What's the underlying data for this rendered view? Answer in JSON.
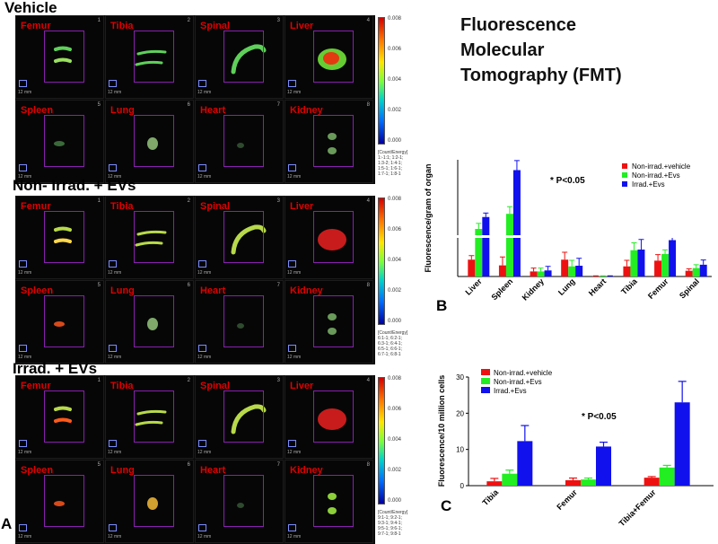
{
  "panel_a": {
    "letter": "A",
    "groups": [
      {
        "title": "Vehicle",
        "cells": [
          "Femur",
          "Tibia",
          "Spinal",
          "Liver",
          "Spleen",
          "Lung",
          "Heart",
          "Kidney"
        ],
        "ticks": [
          "0.008",
          "0.006",
          "0.004",
          "0.002",
          "0.000"
        ],
        "note": "[Count/Energy]\n1:-1:1; 1:2-1;\n1:3-2; 1:4-1;\n1:5-1; 1:6-1;\n1:7-1; 1:8-1"
      },
      {
        "title": "Non- Irrad. + EVs",
        "cells": [
          "Femur",
          "Tibia",
          "Spinal",
          "Liver",
          "Spleen",
          "Lung",
          "Heart",
          "Kidney"
        ],
        "ticks": [
          "0.008",
          "0.006",
          "0.004",
          "0.002",
          "0.000"
        ],
        "note": "[Count/Energy]\n6:1-1; 6:2-1;\n6:3-1; 6:4-1;\n6:5-1; 6:6-1;\n6:7-1; 6:8-1"
      },
      {
        "title": "Irrad. + EVs",
        "cells": [
          "Femur",
          "Tibia",
          "Spinal",
          "Liver",
          "Spleen",
          "Lung",
          "Heart",
          "Kidney"
        ],
        "ticks": [
          "0.008",
          "0.006",
          "0.004",
          "0.002",
          "0.000"
        ],
        "note": "[Count/Energy]\n9:1-1; 9:2-1;\n9:3-1; 9:4-1;\n9:5-1; 9:6-1;\n9:7-1; 9:8-1"
      }
    ],
    "cell_numbers": [
      "1",
      "2",
      "3",
      "4",
      "5",
      "6",
      "7",
      "8"
    ],
    "scale_label": "12 mm"
  },
  "fmt_title_lines": [
    "Fluorescence",
    "Molecular",
    "Tomography (FMT)"
  ],
  "colors": {
    "non_irrad_vehicle": "#ee1111",
    "non_irrad_evs": "#22ee22",
    "irrad_evs": "#1111ee"
  },
  "chart_data": [
    {
      "type": "bar",
      "panel_letter": "B",
      "ylabel": "Fluorescence/gram of organ",
      "annotation": "* P<0.05",
      "axis_break": true,
      "categories": [
        "Liver",
        "Spleen",
        "Kidney",
        "Lung",
        "Heart",
        "Tibia",
        "Femur",
        "Spinal"
      ],
      "series": [
        {
          "name": "Non-irrad.+vehicle",
          "values": [
            50,
            33,
            15,
            50,
            1,
            30,
            47,
            17
          ],
          "errors": [
            12,
            25,
            10,
            22,
            1,
            18,
            18,
            6
          ]
        },
        {
          "name": "Non-irrad.+Evs",
          "values": [
            165,
            260,
            15,
            30,
            1,
            78,
            67,
            25
          ],
          "errors": [
            35,
            45,
            10,
            18,
            1,
            22,
            12,
            10
          ]
        },
        {
          "name": "Irrad.+Evs",
          "values": [
            240,
            535,
            18,
            32,
            1,
            80,
            108,
            35
          ],
          "errors": [
            25,
            60,
            12,
            22,
            1,
            30,
            12,
            14
          ]
        }
      ]
    },
    {
      "type": "bar",
      "panel_letter": "C",
      "ylabel": "Fluorescence/10 million cells",
      "annotation": "* P<0.05",
      "categories": [
        "Tibia",
        "Femur",
        "Tibia+Femur"
      ],
      "yticks": [
        "0",
        "10",
        "20",
        "30"
      ],
      "ylim": [
        0,
        30
      ],
      "series": [
        {
          "name": "Non-irrad.+vehicle",
          "values": [
            1.2,
            1.5,
            2.2
          ],
          "errors": [
            0.8,
            0.6,
            0.3
          ]
        },
        {
          "name": "Non-irrad.+Evs",
          "values": [
            3.3,
            1.7,
            5.0
          ],
          "errors": [
            1.0,
            0.4,
            0.6
          ]
        },
        {
          "name": "Irrad.+Evs",
          "values": [
            12.3,
            10.8,
            23.0
          ],
          "errors": [
            4.3,
            1.2,
            5.8
          ]
        }
      ]
    }
  ]
}
